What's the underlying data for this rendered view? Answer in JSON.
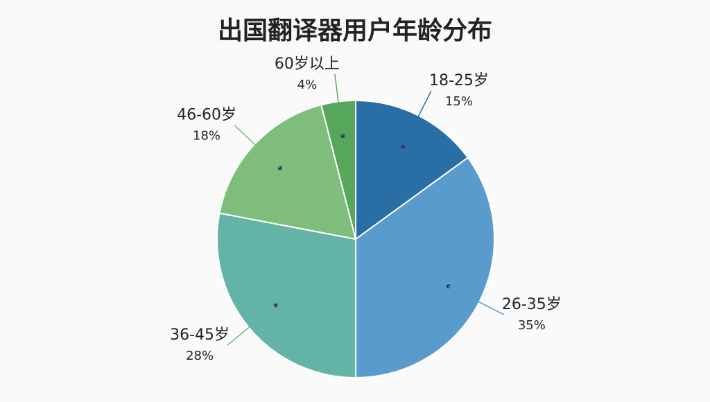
{
  "chart_data": {
    "type": "pie",
    "title": "出国翻译器用户年龄分布",
    "categories": [
      "18-25岁",
      "26-35岁",
      "36-45岁",
      "46-60岁",
      "60岁以上"
    ],
    "values": [
      15,
      35,
      28,
      18,
      4
    ],
    "value_labels": [
      "15%",
      "35%",
      "28%",
      "18%",
      "4%"
    ],
    "colors": [
      "#2a6ea6",
      "#5a9bcd",
      "#63b4a6",
      "#7ebd7c",
      "#56a75b"
    ]
  }
}
